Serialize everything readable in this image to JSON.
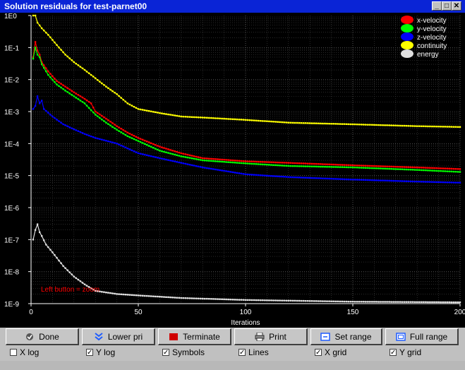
{
  "window": {
    "title": "Solution residuals for test-parnet00"
  },
  "buttons": [
    {
      "label": "Done",
      "icon": "done-icon"
    },
    {
      "label": "Lower pri",
      "icon": "chevron-down-icon"
    },
    {
      "label": "Terminate",
      "icon": "terminate-icon"
    },
    {
      "label": "Print",
      "icon": "printer-icon"
    },
    {
      "label": "Set range",
      "icon": "range-icon"
    },
    {
      "label": "Full range",
      "icon": "full-range-icon"
    }
  ],
  "options": [
    {
      "label": "X log",
      "checked": false
    },
    {
      "label": "Y log",
      "checked": true
    },
    {
      "label": "Symbols",
      "checked": true
    },
    {
      "label": "Lines",
      "checked": true
    },
    {
      "label": "X grid",
      "checked": true
    },
    {
      "label": "Y grid",
      "checked": true
    }
  ],
  "chart_data": {
    "type": "line",
    "title": "",
    "xlabel": "Iterations",
    "ylabel": "",
    "xlim": [
      0,
      200
    ],
    "ylim": [
      1e-09,
      1
    ],
    "yscale": "log",
    "xticks": [
      0,
      50,
      100,
      150,
      200
    ],
    "yticks": [
      "1E0",
      "1E-1",
      "1E-2",
      "1E-3",
      "1E-4",
      "1E-5",
      "1E-6",
      "1E-7",
      "1E-8",
      "1E-9"
    ],
    "grid": true,
    "legend_position": "top-right",
    "annotation": "Left button = zoom",
    "colors": {
      "background": "#000000",
      "axis": "#ffffff",
      "annotation": "#ff0000"
    },
    "series": [
      {
        "name": "x-velocity",
        "color": "#ff0000",
        "points": [
          [
            1,
            0.05
          ],
          [
            2,
            0.15
          ],
          [
            3,
            0.08
          ],
          [
            4,
            0.06
          ],
          [
            5,
            0.035
          ],
          [
            8,
            0.018
          ],
          [
            12,
            0.009
          ],
          [
            16,
            0.006
          ],
          [
            20,
            0.004
          ],
          [
            25,
            0.0025
          ],
          [
            28,
            0.0018
          ],
          [
            30,
            0.001
          ],
          [
            35,
            0.0006
          ],
          [
            40,
            0.00035
          ],
          [
            45,
            0.00022
          ],
          [
            50,
            0.00015
          ],
          [
            60,
            8e-05
          ],
          [
            70,
            5e-05
          ],
          [
            80,
            3.5e-05
          ],
          [
            100,
            2.8e-05
          ],
          [
            120,
            2.5e-05
          ],
          [
            150,
            2.1e-05
          ],
          [
            180,
            1.8e-05
          ],
          [
            200,
            1.6e-05
          ]
        ]
      },
      {
        "name": "y-velocity",
        "color": "#00ff00",
        "points": [
          [
            1,
            0.045
          ],
          [
            2,
            0.1
          ],
          [
            3,
            0.06
          ],
          [
            4,
            0.05
          ],
          [
            5,
            0.03
          ],
          [
            8,
            0.014
          ],
          [
            12,
            0.007
          ],
          [
            16,
            0.0045
          ],
          [
            20,
            0.003
          ],
          [
            25,
            0.0018
          ],
          [
            30,
            0.0008
          ],
          [
            35,
            0.00045
          ],
          [
            40,
            0.00027
          ],
          [
            45,
            0.00017
          ],
          [
            50,
            0.00012
          ],
          [
            60,
            6e-05
          ],
          [
            70,
            4e-05
          ],
          [
            80,
            3e-05
          ],
          [
            100,
            2.4e-05
          ],
          [
            120,
            2e-05
          ],
          [
            150,
            1.8e-05
          ],
          [
            180,
            1.5e-05
          ],
          [
            200,
            1.3e-05
          ]
        ]
      },
      {
        "name": "z-velocity",
        "color": "#0000ff",
        "points": [
          [
            1,
            0.0012
          ],
          [
            2,
            0.0015
          ],
          [
            3,
            0.003
          ],
          [
            4,
            0.0018
          ],
          [
            5,
            0.0022
          ],
          [
            6,
            0.0012
          ],
          [
            10,
            0.0007
          ],
          [
            15,
            0.0004
          ],
          [
            20,
            0.00028
          ],
          [
            25,
            0.0002
          ],
          [
            30,
            0.00015
          ],
          [
            40,
            0.0001
          ],
          [
            50,
            5e-05
          ],
          [
            60,
            3.5e-05
          ],
          [
            70,
            2.5e-05
          ],
          [
            80,
            1.8e-05
          ],
          [
            100,
            1.1e-05
          ],
          [
            120,
            9e-06
          ],
          [
            150,
            7.5e-06
          ],
          [
            180,
            6.5e-06
          ],
          [
            200,
            6e-06
          ]
        ]
      },
      {
        "name": "continuity",
        "color": "#ffff00",
        "points": [
          [
            1,
            1.0
          ],
          [
            2,
            1.0
          ],
          [
            3,
            0.6
          ],
          [
            5,
            0.4
          ],
          [
            8,
            0.25
          ],
          [
            12,
            0.12
          ],
          [
            16,
            0.06
          ],
          [
            20,
            0.035
          ],
          [
            25,
            0.02
          ],
          [
            30,
            0.011
          ],
          [
            35,
            0.006
          ],
          [
            40,
            0.0035
          ],
          [
            45,
            0.0018
          ],
          [
            50,
            0.0012
          ],
          [
            60,
            0.0009
          ],
          [
            70,
            0.0007
          ],
          [
            80,
            0.00065
          ],
          [
            100,
            0.00055
          ],
          [
            120,
            0.00045
          ],
          [
            150,
            0.0004
          ],
          [
            180,
            0.00035
          ],
          [
            200,
            0.00033
          ]
        ]
      },
      {
        "name": "energy",
        "color": "#e0e0e0",
        "points": [
          [
            1,
            1e-07
          ],
          [
            2,
            2e-07
          ],
          [
            3,
            3e-07
          ],
          [
            4,
            1.7e-07
          ],
          [
            5,
            1.3e-07
          ],
          [
            7,
            7e-08
          ],
          [
            10,
            4e-08
          ],
          [
            15,
            1.5e-08
          ],
          [
            20,
            7e-09
          ],
          [
            25,
            4e-09
          ],
          [
            30,
            2.5e-09
          ],
          [
            40,
            2e-09
          ],
          [
            50,
            1.8e-09
          ],
          [
            70,
            1.5e-09
          ],
          [
            100,
            1.3e-09
          ],
          [
            150,
            1.15e-09
          ],
          [
            200,
            1.1e-09
          ]
        ]
      }
    ]
  }
}
